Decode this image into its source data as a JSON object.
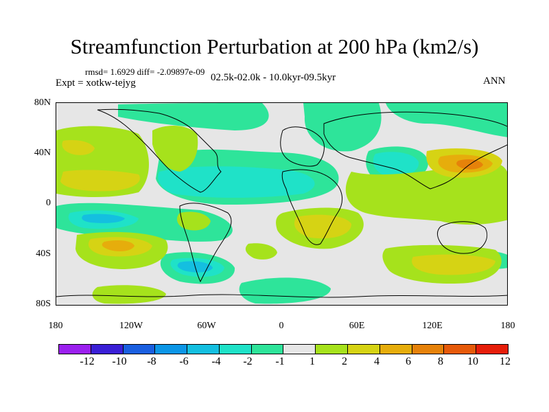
{
  "title": "Streamfunction Perturbation at 200 hPa (km2/s)",
  "stats": "rmsd= 1.6929 diff= -2.09897e-09",
  "experiment": "Expt = xotkw-tejyg",
  "period": "02.5k-02.0k - 10.0kyr-09.5kyr",
  "season": "ANN",
  "lat_labels": [
    "80N",
    "40N",
    "0",
    "40S",
    "80S"
  ],
  "lon_labels": [
    "180",
    "120W",
    "60W",
    "0",
    "60E",
    "120E",
    "180"
  ],
  "colorbar": {
    "labels": [
      "-12",
      "-10",
      "-8",
      "-6",
      "-4",
      "-2",
      "-1",
      "1",
      "2",
      "4",
      "6",
      "8",
      "10",
      "12"
    ],
    "colors": [
      "#9b20ef",
      "#3a1fd6",
      "#1a5fe0",
      "#0c96e6",
      "#14bfe0",
      "#1fe2c8",
      "#2ee49a",
      "#e6e6e6",
      "#a6e21c",
      "#d6d314",
      "#e6ad0c",
      "#e6820a",
      "#e65a0a",
      "#e61e0a"
    ]
  },
  "background_color": "#e6e6e6"
}
